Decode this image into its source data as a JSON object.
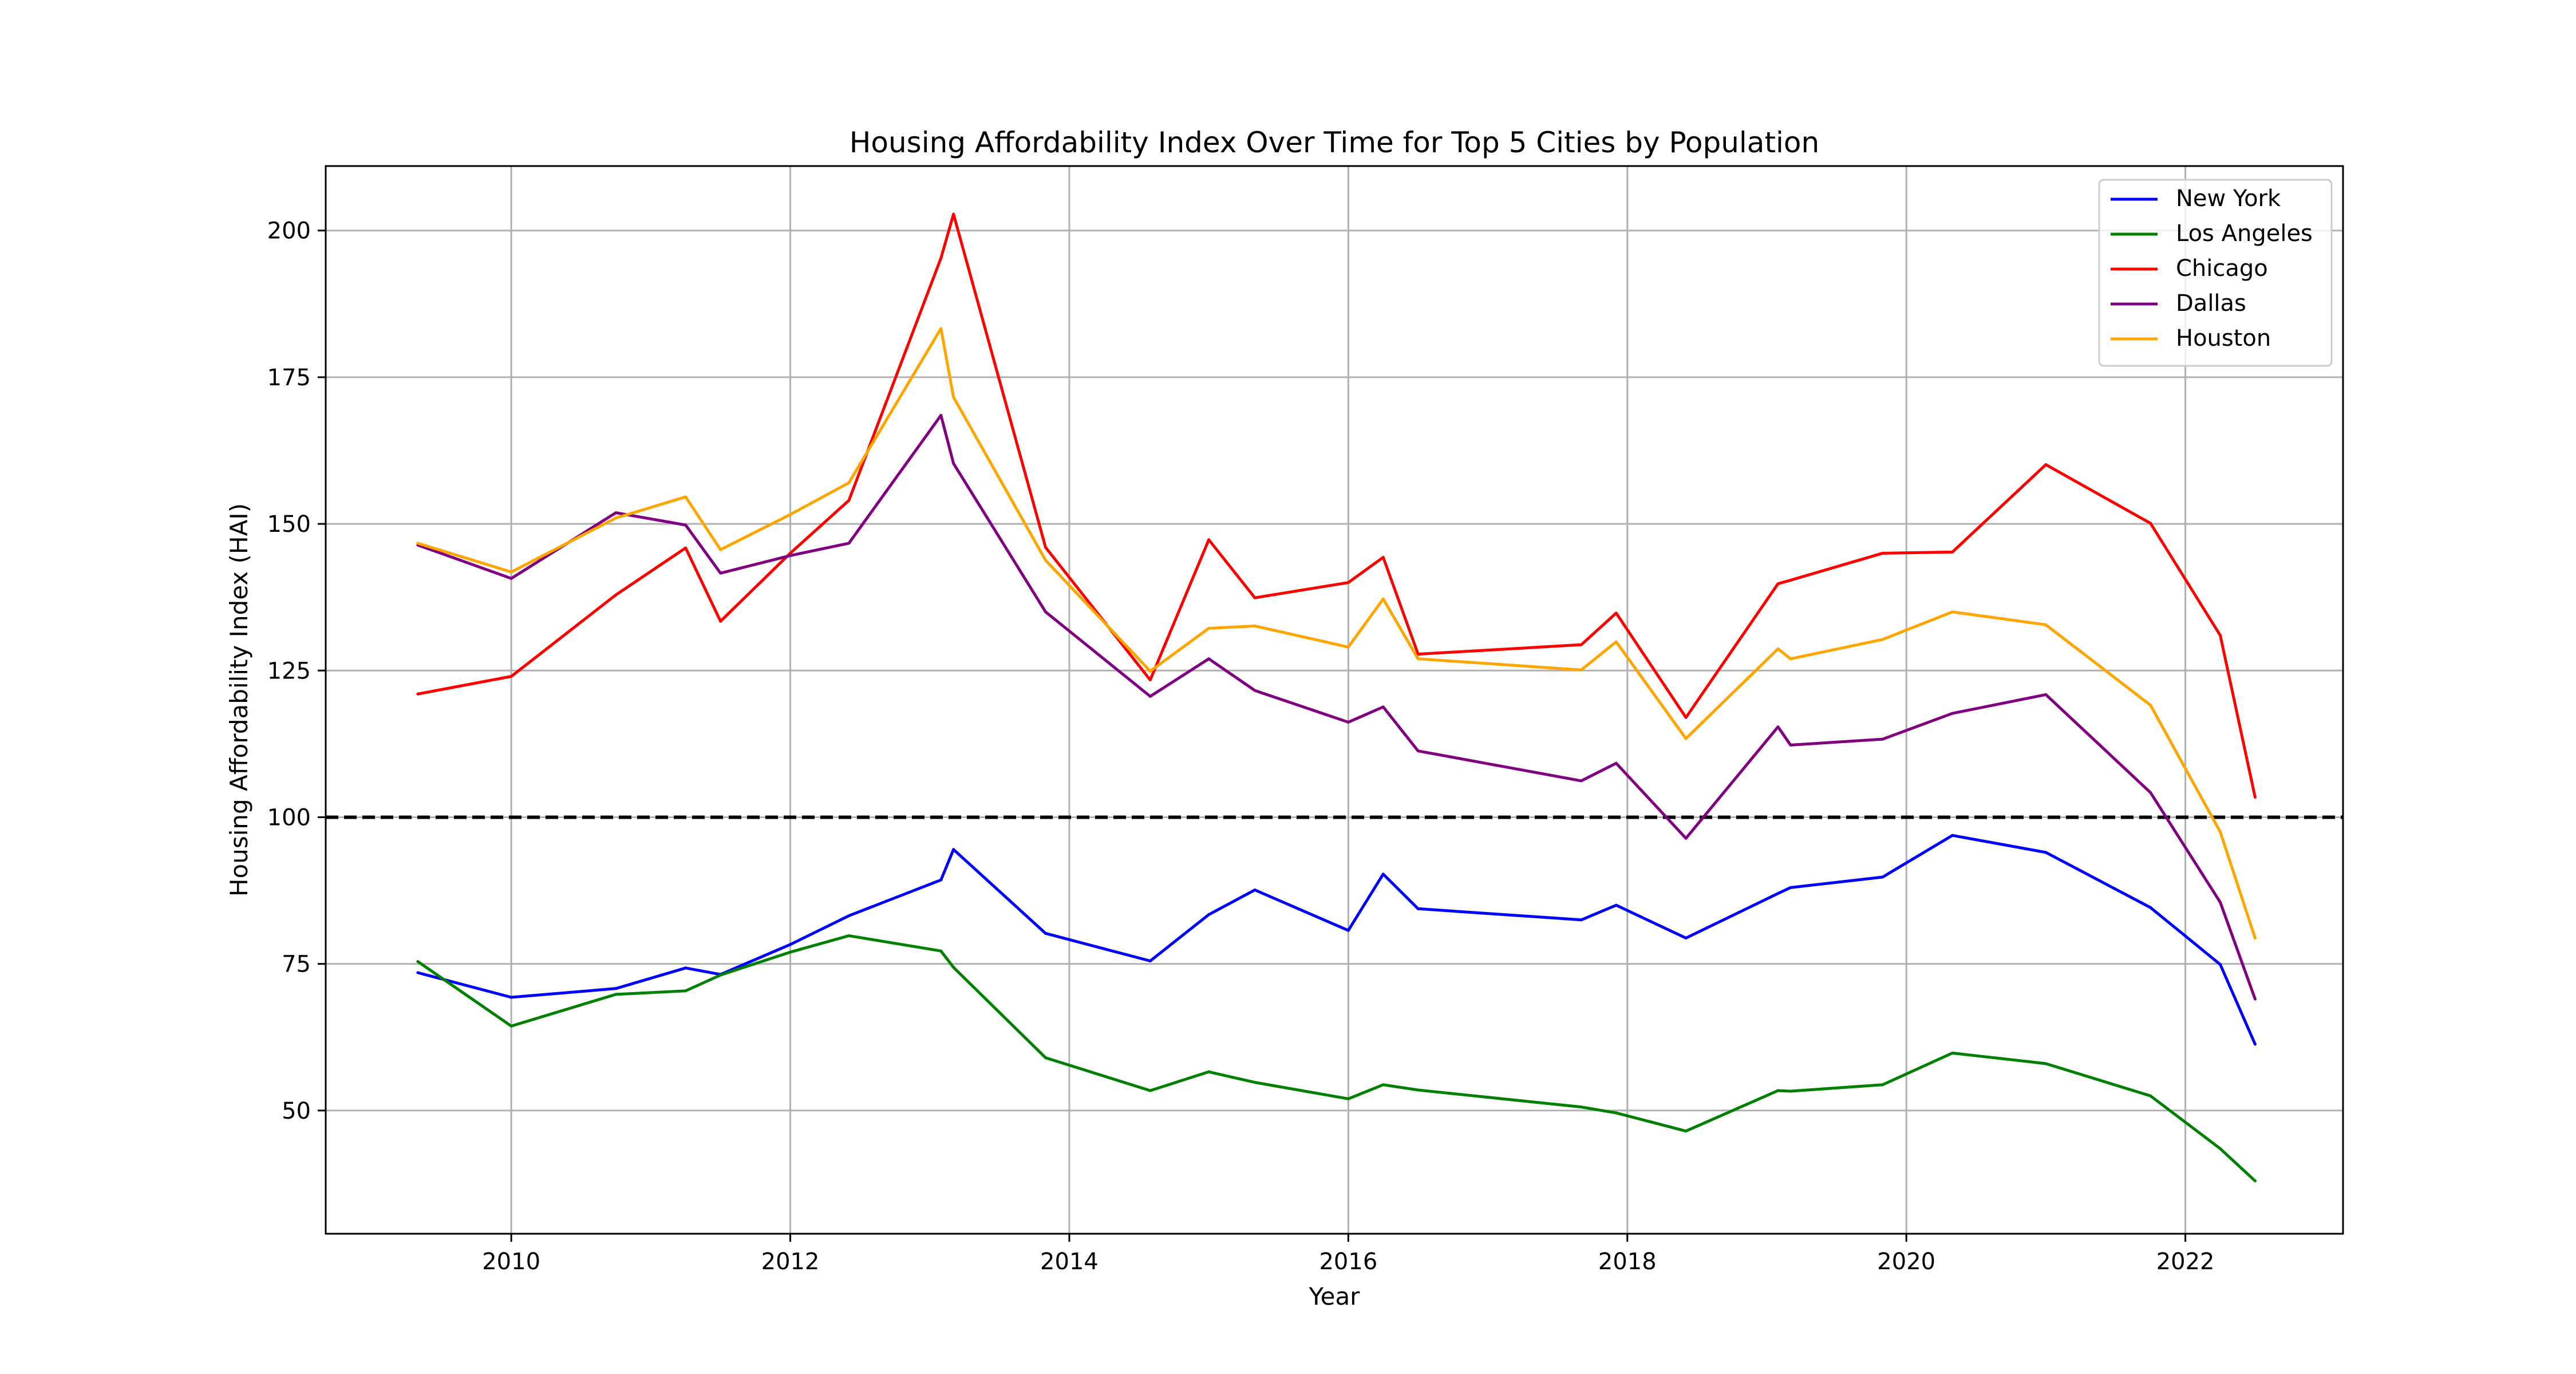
{
  "chart_data": {
    "type": "line",
    "title": "Housing Affordability Index Over Time for Top 5 Cities by Population",
    "xlabel": "Year",
    "ylabel": "Housing Affordability Index (HAI)",
    "xlim": [
      2008.67,
      2023.13
    ],
    "ylim": [
      29,
      211
    ],
    "x_ticks": [
      2010,
      2012,
      2014,
      2016,
      2018,
      2020,
      2022
    ],
    "y_ticks": [
      50,
      75,
      100,
      125,
      150,
      175,
      200
    ],
    "grid": true,
    "legend_position": "top-right",
    "reference_line": {
      "y": 100,
      "style": "dashed",
      "color": "#000000"
    },
    "x": [
      2009.33,
      2010.0,
      2010.75,
      2011.25,
      2011.5,
      2012.0,
      2012.42,
      2013.08,
      2013.17,
      2013.83,
      2014.58,
      2015.0,
      2015.33,
      2016.0,
      2016.25,
      2016.5,
      2017.67,
      2017.92,
      2018.42,
      2019.08,
      2019.17,
      2019.83,
      2020.33,
      2021.0,
      2021.75,
      2022.25,
      2022.5
    ],
    "series": [
      {
        "name": "New York",
        "color": "#0000ff",
        "values": [
          73.5,
          69.3,
          70.8,
          74.3,
          73.2,
          78.3,
          83.2,
          89.3,
          94.5,
          80.2,
          75.5,
          83.4,
          87.6,
          80.7,
          90.3,
          84.4,
          82.5,
          85.0,
          79.4,
          87.0,
          88.0,
          89.8,
          96.9,
          94.0,
          84.6,
          74.9,
          61.3
        ]
      },
      {
        "name": "Los Angeles",
        "color": "#008000",
        "values": [
          75.4,
          64.4,
          69.8,
          70.4,
          73.1,
          77.0,
          79.8,
          77.2,
          74.4,
          59.0,
          53.4,
          56.6,
          54.8,
          52.0,
          54.4,
          53.5,
          50.6,
          49.6,
          46.5,
          53.4,
          53.3,
          54.4,
          59.8,
          58.0,
          52.5,
          43.5,
          38.0
        ]
      },
      {
        "name": "Chicago",
        "color": "#ff0000",
        "values": [
          121.0,
          124.0,
          137.9,
          145.9,
          133.4,
          145.0,
          154.0,
          195.3,
          202.8,
          146.0,
          123.4,
          147.3,
          137.4,
          140.0,
          144.3,
          127.8,
          129.4,
          134.8,
          117.0,
          139.8,
          140.4,
          145.0,
          145.2,
          160.1,
          150.1,
          131.0,
          103.4
        ]
      },
      {
        "name": "Dallas",
        "color": "#800080",
        "values": [
          146.4,
          140.7,
          151.9,
          149.8,
          141.6,
          144.6,
          146.7,
          168.5,
          160.3,
          135.0,
          120.6,
          127.0,
          121.6,
          116.2,
          118.8,
          111.3,
          106.2,
          109.2,
          96.4,
          115.4,
          112.3,
          113.3,
          117.7,
          120.9,
          104.2,
          85.5,
          69.0
        ]
      },
      {
        "name": "Houston",
        "color": "#ffa500",
        "values": [
          146.7,
          141.8,
          151.0,
          154.6,
          145.6,
          151.6,
          157.0,
          183.3,
          171.6,
          143.8,
          124.9,
          132.2,
          132.6,
          129.0,
          137.2,
          127.0,
          125.1,
          129.9,
          113.4,
          128.7,
          127.0,
          130.3,
          135.0,
          132.8,
          119.1,
          97.5,
          79.4
        ]
      }
    ]
  }
}
